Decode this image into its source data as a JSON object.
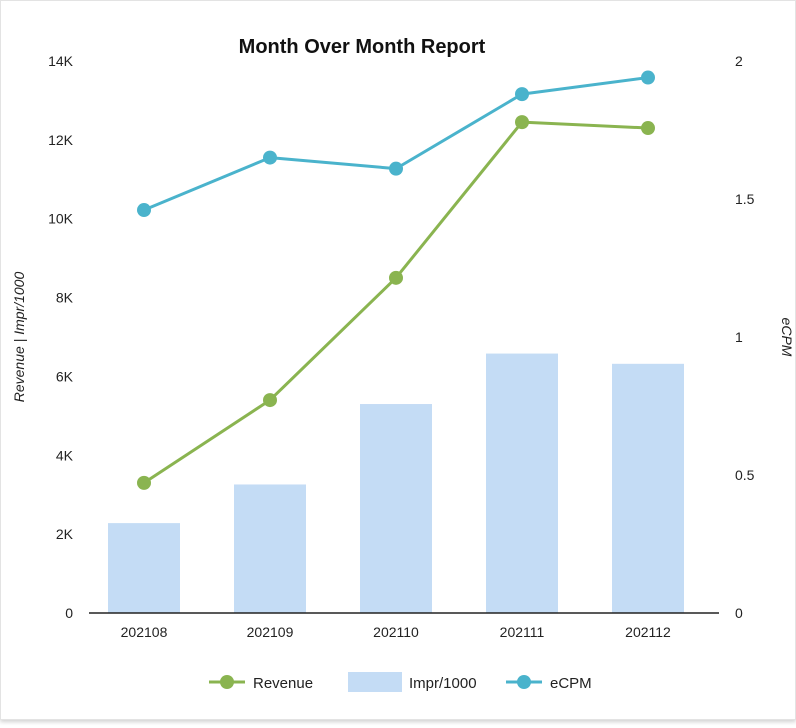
{
  "chart_data": {
    "type": "bar",
    "title": "Month Over Month Report",
    "categories": [
      "202108",
      "202109",
      "202110",
      "202111",
      "202112"
    ],
    "series": [
      {
        "name": "Revenue",
        "kind": "line",
        "axis": "left",
        "color": "#8ab450",
        "values": [
          3300,
          5400,
          8500,
          12450,
          12300
        ]
      },
      {
        "name": "Impr/1000",
        "kind": "bar",
        "axis": "left",
        "color": "#c4dcf5",
        "values": [
          2280,
          3260,
          5300,
          6580,
          6320
        ]
      },
      {
        "name": "eCPM",
        "kind": "line",
        "axis": "right",
        "color": "#4ab3cc",
        "values": [
          1.46,
          1.65,
          1.61,
          1.88,
          1.94
        ]
      }
    ],
    "y_left": {
      "label": "Revenue | Impr/1000",
      "range": [
        0,
        14000
      ],
      "ticks": [
        0,
        2000,
        4000,
        6000,
        8000,
        10000,
        12000,
        14000
      ],
      "tick_labels": [
        "0",
        "2K",
        "4K",
        "6K",
        "8K",
        "10K",
        "12K",
        "14K"
      ]
    },
    "y_right": {
      "label": "eCPM",
      "range": [
        0,
        2
      ],
      "ticks": [
        0,
        0.5,
        1,
        1.5,
        2
      ],
      "tick_labels": [
        "0",
        "0.5",
        "1",
        "1.5",
        "2"
      ]
    },
    "grid": false,
    "legend_position": "bottom"
  }
}
